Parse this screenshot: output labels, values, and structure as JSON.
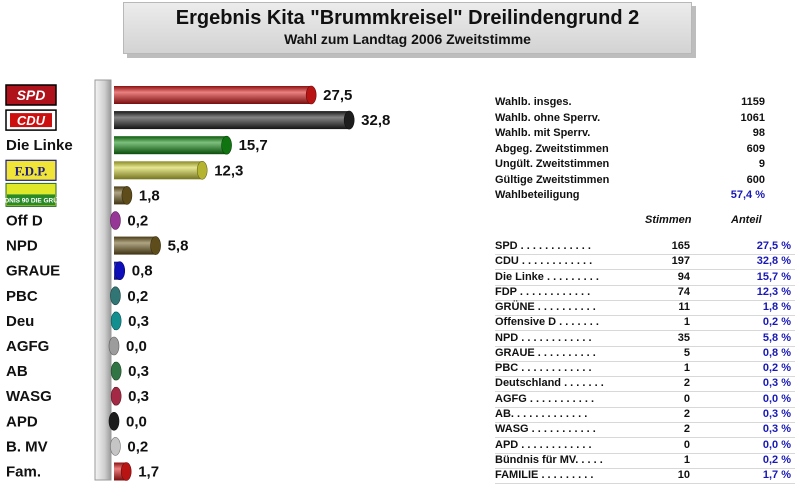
{
  "header": {
    "title": "Ergebnis Kita \"Brummkreisel\" Dreilindengrund 2",
    "subtitle": "Wahl zum Landtag 2006 Zweitstimme"
  },
  "chart_data": {
    "type": "bar",
    "orientation": "horizontal",
    "categories": [
      "SPD",
      "CDU",
      "Die Linke",
      "F.D.P.",
      "BÜNDNIS 90 DIE GRÜNEN",
      "Off D",
      "NPD",
      "GRAUE",
      "PBC",
      "Deu",
      "AGFG",
      "AB",
      "WASG",
      "APD",
      "B. MV",
      "Fam."
    ],
    "values": [
      27.5,
      32.8,
      15.7,
      12.3,
      1.8,
      0.2,
      5.8,
      0.8,
      0.2,
      0.3,
      0.0,
      0.3,
      0.3,
      0.0,
      0.2,
      1.7
    ],
    "value_labels": [
      "27,5",
      "32,8",
      "15,7",
      "12,3",
      "1,8",
      "0,2",
      "5,8",
      "0,8",
      "0,2",
      "0,3",
      "0,0",
      "0,3",
      "0,3",
      "0,0",
      "0,2",
      "1,7"
    ],
    "colors": [
      "#d81818",
      "#222222",
      "#138a13",
      "#d4d43a",
      "#6e5a1e",
      "#b040b0",
      "#6e5a1e",
      "#1010d8",
      "#3a8a8a",
      "#18a8a8",
      "#b8b8b8",
      "#3a8a50",
      "#c03050",
      "#222222",
      "#e8e8e8",
      "#d81818"
    ],
    "label_styles": [
      "badge-spd",
      "badge-cdu",
      "text",
      "badge-fdp",
      "badge-gruene",
      "text",
      "text",
      "text",
      "text",
      "text",
      "text",
      "text",
      "text",
      "text",
      "text",
      "text"
    ],
    "grid": false,
    "legend": "none"
  },
  "stats": {
    "rows": [
      {
        "label": "Wahlb. insges.",
        "value": "1159"
      },
      {
        "label": "Wahlb. ohne Sperrv.",
        "value": "1061"
      },
      {
        "label": "Wahlb. mit Sperrv.",
        "value": "98"
      },
      {
        "label": "Abgeg. Zweitstimmen",
        "value": "609"
      },
      {
        "label": "Ungült. Zweitstimmen",
        "value": "9"
      },
      {
        "label": "Gültige Zweitstimmen",
        "value": "600"
      },
      {
        "label": "Wahlbeteiligung",
        "value": "57,4 %"
      }
    ],
    "head_votes": "Stimmen",
    "head_share": "Anteil"
  },
  "results": [
    {
      "name": "SPD . . . . . . . . . . . .",
      "votes": "165",
      "pct": "27,5 %"
    },
    {
      "name": "CDU . . . . . . . . . . . .",
      "votes": "197",
      "pct": "32,8 %"
    },
    {
      "name": "Die Linke . . . . . . . . .",
      "votes": "94",
      "pct": "15,7 %"
    },
    {
      "name": "FDP . . . . . . . . . . . .",
      "votes": "74",
      "pct": "12,3 %"
    },
    {
      "name": "GRÜNE . . . . . . . . . .",
      "votes": "11",
      "pct": "1,8 %"
    },
    {
      "name": "Offensive D . . . . . . .",
      "votes": "1",
      "pct": "0,2 %"
    },
    {
      "name": "NPD . . . . . . . . . . . .",
      "votes": "35",
      "pct": "5,8 %"
    },
    {
      "name": "GRAUE . . . . . . . . . .",
      "votes": "5",
      "pct": "0,8 %"
    },
    {
      "name": "PBC . . . . . . . . . . . .",
      "votes": "1",
      "pct": "0,2 %"
    },
    {
      "name": "Deutschland . . . . . . .",
      "votes": "2",
      "pct": "0,3 %"
    },
    {
      "name": "AGFG . . . . . . . . . . .",
      "votes": "0",
      "pct": "0,0 %"
    },
    {
      "name": "AB. . . . . . . . . . . . .",
      "votes": "2",
      "pct": "0,3 %"
    },
    {
      "name": "WASG . . . . . . . . . . .",
      "votes": "2",
      "pct": "0,3 %"
    },
    {
      "name": "APD . . . . . . . . . . . .",
      "votes": "0",
      "pct": "0,0 %"
    },
    {
      "name": "Bündnis für MV. . . . .",
      "votes": "1",
      "pct": "0,2 %"
    },
    {
      "name": "FAMILIE . . . . . . . . .",
      "votes": "10",
      "pct": "1,7 %"
    }
  ]
}
